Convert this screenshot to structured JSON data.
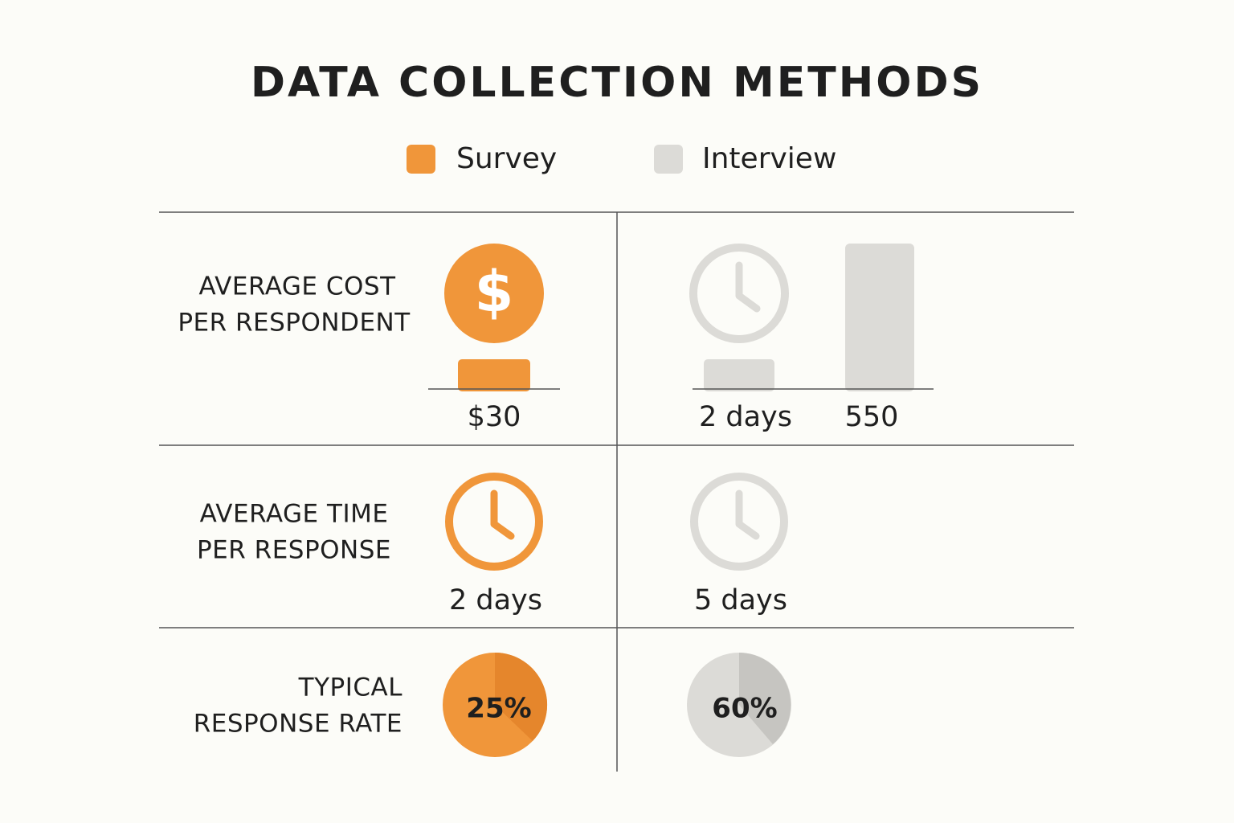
{
  "title": "DATA COLLECTION METHODS",
  "legend": [
    {
      "label": "Survey",
      "color": "#f0963a"
    },
    {
      "label": "Interview",
      "color": "#dcdbd7"
    }
  ],
  "rows": [
    {
      "label": [
        "AVERAGE COST",
        "PER RESPONDENT"
      ],
      "survey": [
        "$30"
      ],
      "interview": [
        "2 days",
        "550"
      ]
    },
    {
      "label": [
        "AVERAGE TIME",
        "PER RESPONSE"
      ],
      "survey": [
        "2 days"
      ],
      "interview": [
        "5 days"
      ]
    },
    {
      "label": [
        "TYPICAL",
        "RESPONSE RATE"
      ],
      "survey": [
        "25%"
      ],
      "interview": [
        "60%"
      ]
    }
  ]
}
